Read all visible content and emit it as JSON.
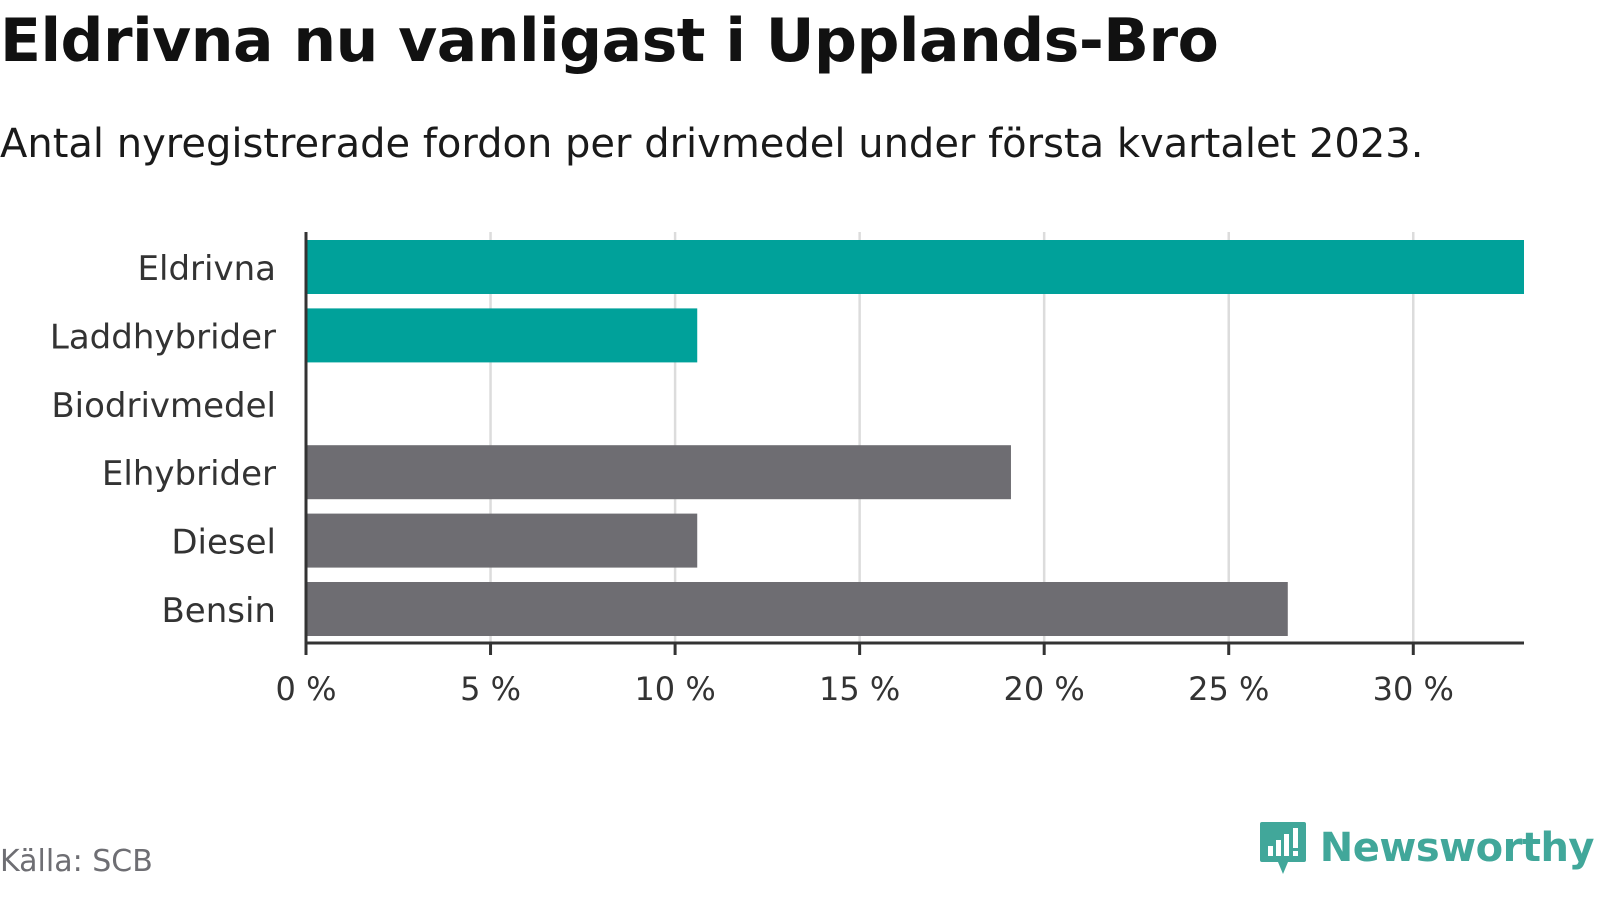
{
  "header": {
    "title": "Eldrivna nu vanligast i Upplands-Bro",
    "subtitle": "Antal nyregistrerade fordon per drivmedel under första kvartalet 2023."
  },
  "chart_data": {
    "type": "bar",
    "orientation": "horizontal",
    "categories": [
      "Eldrivna",
      "Laddhybrider",
      "Biodrivmedel",
      "Elhybrider",
      "Diesel",
      "Bensin"
    ],
    "values": [
      33.0,
      10.6,
      0,
      19.1,
      10.6,
      26.6
    ],
    "bar_colors": [
      "#00a19a",
      "#00a19a",
      "#00a19a",
      "#6e6d72",
      "#6e6d72",
      "#6e6d72"
    ],
    "unit": "%",
    "xlim": [
      0,
      33
    ],
    "xticks": [
      0,
      5,
      10,
      15,
      20,
      25,
      30
    ],
    "xtick_labels": [
      "0 %",
      "5 %",
      "10 %",
      "15 %",
      "20 %",
      "25 %",
      "30 %"
    ],
    "grid": true,
    "title": "Eldrivna nu vanligast i Upplands-Bro",
    "xlabel": "",
    "ylabel": ""
  },
  "footer": {
    "source": "Källa: SCB",
    "brand": "Newsworthy",
    "brand_icon": "newsworthy-logo-icon",
    "brand_color": "#41a79a"
  },
  "colors": {
    "accent": "#00a19a",
    "neutral": "#6e6d72",
    "gridline": "#dcdcdc",
    "axis": "#333333",
    "text": "#333333"
  }
}
